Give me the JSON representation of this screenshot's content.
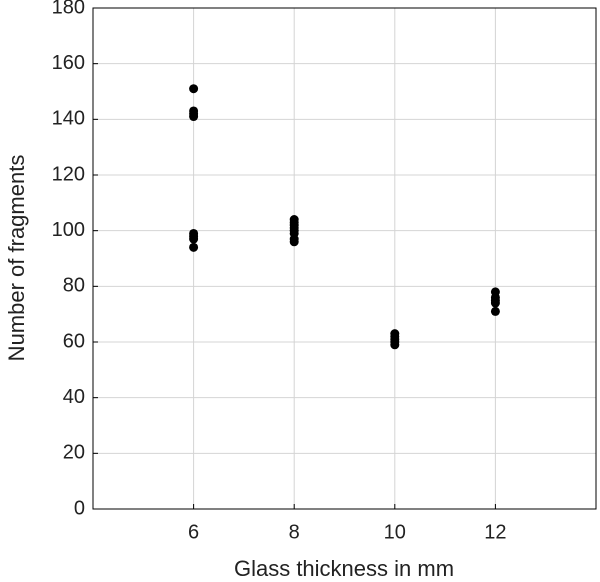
{
  "chart_data": {
    "type": "scatter",
    "x_label": "Glass thickness in mm",
    "y_label": "Number of fragments",
    "x": [
      6,
      6,
      6,
      6,
      6,
      6,
      6,
      6,
      8,
      8,
      8,
      8,
      8,
      8,
      8,
      8,
      10,
      10,
      10,
      10,
      10,
      12,
      12,
      12,
      12,
      12
    ],
    "values": [
      151,
      143,
      142,
      141,
      99,
      98,
      97,
      94,
      104,
      103,
      102,
      101,
      100,
      99,
      97,
      96,
      63,
      62,
      61,
      60,
      59,
      78,
      76,
      75,
      74,
      71
    ],
    "color": "#000000",
    "xlim": [
      4,
      14
    ],
    "xticks": [
      6,
      8,
      10,
      12
    ],
    "ylim": [
      0,
      180
    ],
    "yticks": [
      0,
      20,
      40,
      60,
      80,
      100,
      120,
      140,
      160,
      180
    ],
    "grid": true
  }
}
